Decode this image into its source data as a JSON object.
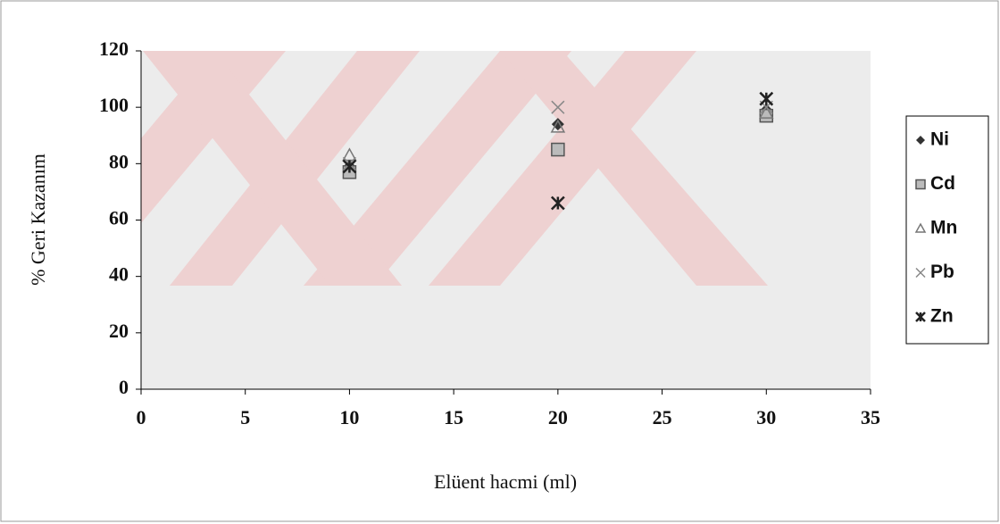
{
  "chart_data": {
    "type": "scatter",
    "x_label": "Elüent hacmi (ml)",
    "y_label": "% Geri Kazanım",
    "x": [
      10,
      20,
      30
    ],
    "series": [
      {
        "name": "Ni",
        "color": "#333333",
        "marker": "diamond",
        "values": [
          79,
          94,
          99
        ]
      },
      {
        "name": "Cd",
        "color": "#555555",
        "marker": "square",
        "values": [
          77,
          85,
          97
        ]
      },
      {
        "name": "Mn",
        "color": "#777777",
        "marker": "triangle",
        "values": [
          83,
          93,
          98
        ]
      },
      {
        "name": "Pb",
        "color": "#888888",
        "marker": "x",
        "values": [
          80,
          100,
          100
        ]
      },
      {
        "name": "Zn",
        "color": "#222222",
        "marker": "star",
        "values": [
          79,
          66,
          103
        ]
      }
    ],
    "xlim": [
      0,
      35
    ],
    "xticks": [
      0,
      5,
      10,
      15,
      20,
      25,
      30,
      35
    ],
    "ylim": [
      0,
      120
    ],
    "yticks": [
      0,
      20,
      40,
      60,
      80,
      100,
      120
    ],
    "legend": "right"
  }
}
